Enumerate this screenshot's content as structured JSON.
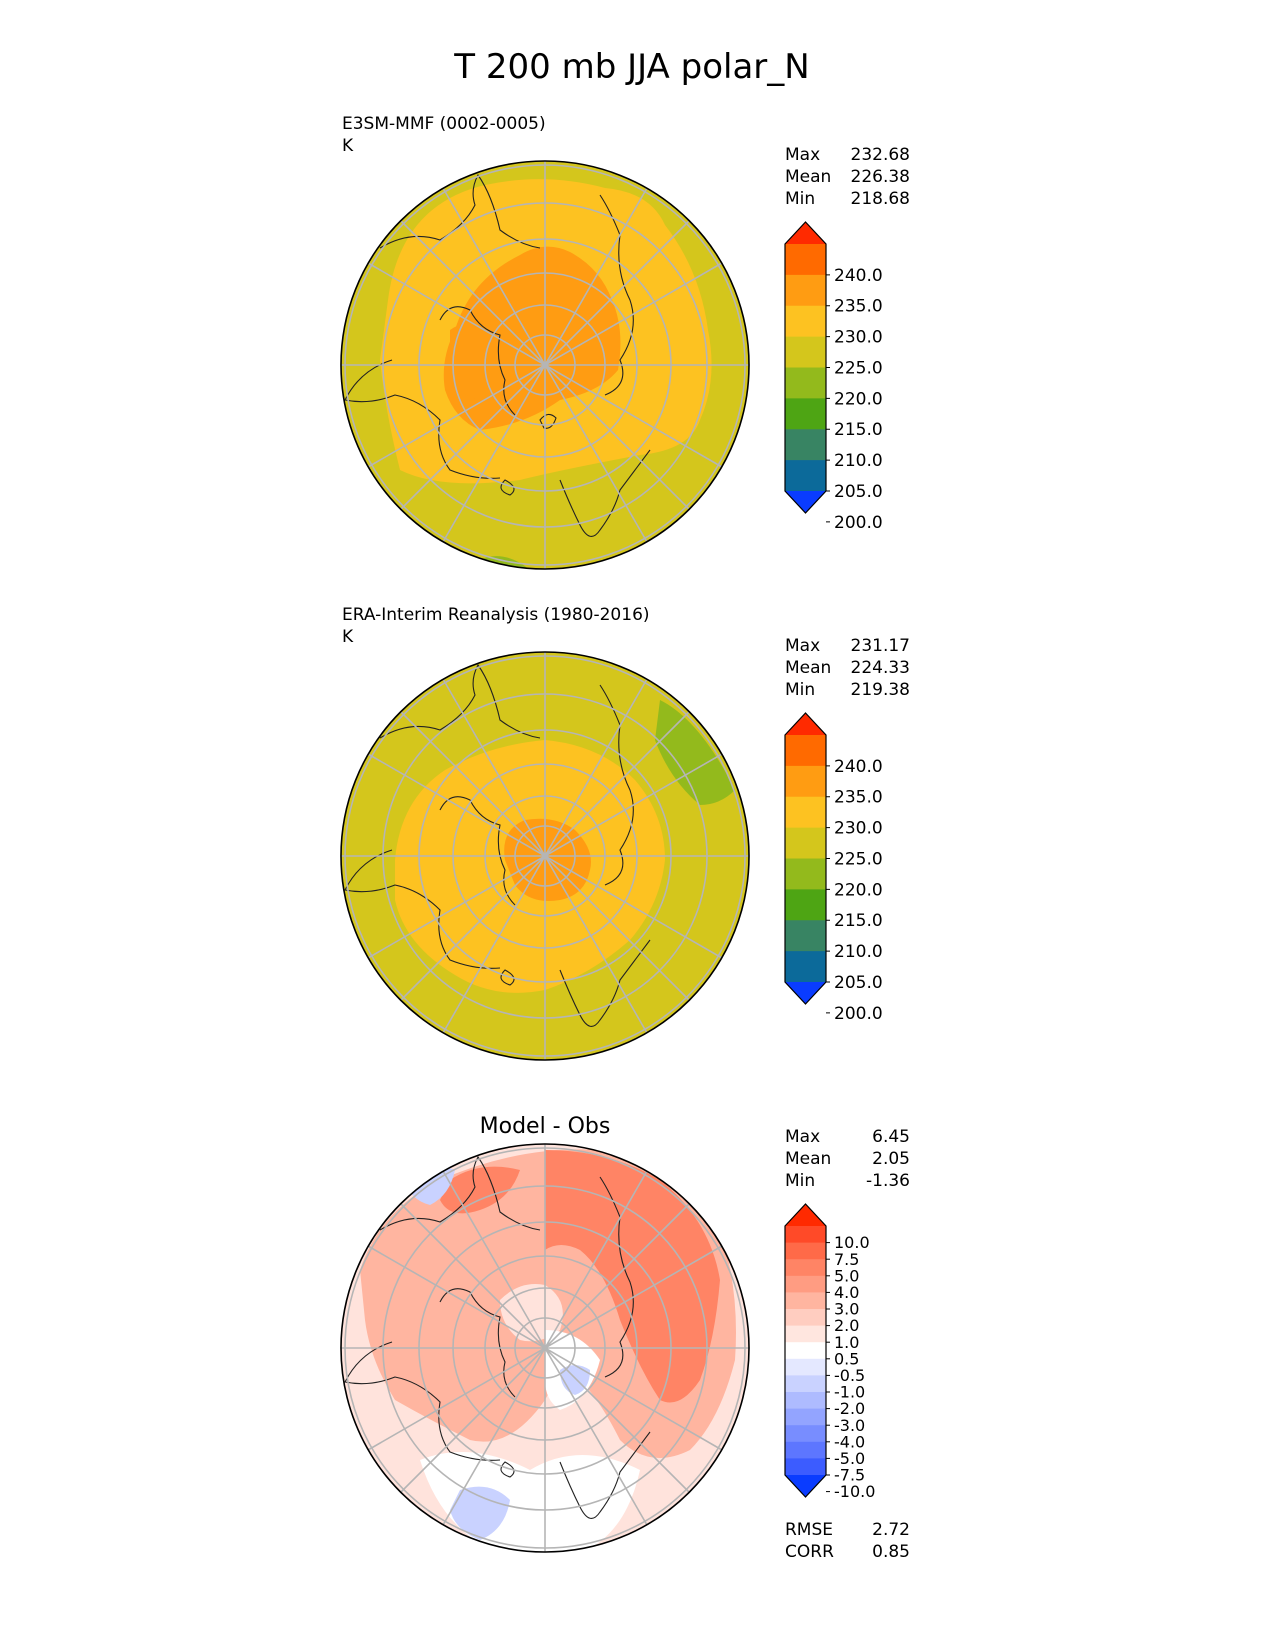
{
  "title": "T 200 mb JJA polar_N",
  "chart_data": [
    {
      "type": "heatmap",
      "projection": "north-polar-stereographic",
      "title": "E3SM-MMF (0002-0005)",
      "units": "K",
      "stats": [
        {
          "label": "Max",
          "value": "232.68"
        },
        {
          "label": "Mean",
          "value": "226.38"
        },
        {
          "label": "Min",
          "value": "218.68"
        }
      ],
      "colorbar": {
        "extend": "both",
        "ticks": [
          "240.0",
          "235.0",
          "230.0",
          "225.0",
          "220.0",
          "215.0",
          "210.0",
          "205.0",
          "200.0"
        ],
        "colors": [
          "#ff2a00",
          "#ff6a00",
          "#ff9c12",
          "#fdc221",
          "#d4c61c",
          "#93ba1c",
          "#4ea514",
          "#388463",
          "#0c6a9a",
          "#0a3cff"
        ]
      },
      "field": {
        "background": "#d4c61c",
        "levels": [
          {
            "value": 225,
            "color": "#fdc221"
          },
          {
            "value": 230,
            "color": "#ff9c12"
          }
        ],
        "edge_patches": [
          {
            "color": "#93ba1c",
            "where": "top-left"
          },
          {
            "color": "#93ba1c",
            "where": "bottom"
          }
        ]
      }
    },
    {
      "type": "heatmap",
      "projection": "north-polar-stereographic",
      "title": "ERA-Interim Reanalysis (1980-2016)",
      "units": "K",
      "stats": [
        {
          "label": "Max",
          "value": "231.17"
        },
        {
          "label": "Mean",
          "value": "224.33"
        },
        {
          "label": "Min",
          "value": "219.38"
        }
      ],
      "colorbar": {
        "extend": "both",
        "ticks": [
          "240.0",
          "235.0",
          "230.0",
          "225.0",
          "220.0",
          "215.0",
          "210.0",
          "205.0",
          "200.0"
        ],
        "colors": [
          "#ff2a00",
          "#ff6a00",
          "#ff9c12",
          "#fdc221",
          "#d4c61c",
          "#93ba1c",
          "#4ea514",
          "#388463",
          "#0c6a9a",
          "#0a3cff"
        ]
      },
      "field": {
        "background": "#d4c61c",
        "levels": [
          {
            "value": 225,
            "color": "#fdc221"
          },
          {
            "value": 230,
            "color": "#ff9c12"
          }
        ],
        "edge_patches": [
          {
            "color": "#93ba1c",
            "where": "right"
          }
        ]
      }
    },
    {
      "type": "heatmap",
      "projection": "north-polar-stereographic",
      "title": "Model - Obs",
      "units": "",
      "stats": [
        {
          "label": "Max",
          "value": "6.45"
        },
        {
          "label": "Mean",
          "value": "2.05"
        },
        {
          "label": "Min",
          "value": "-1.36"
        }
      ],
      "colorbar": {
        "extend": "both",
        "ticks": [
          "10.0",
          "7.5",
          "5.0",
          "4.0",
          "3.0",
          "2.0",
          "1.0",
          "0.5",
          "-0.5",
          "-1.0",
          "-2.0",
          "-3.0",
          "-4.0",
          "-5.0",
          "-7.5",
          "-10.0"
        ],
        "colors": [
          "#ff2a00",
          "#ff4a28",
          "#ff6a48",
          "#ff8465",
          "#ff9c82",
          "#ffb5a0",
          "#ffcdc0",
          "#ffe6df",
          "#ffffff",
          "#e4e8ff",
          "#c9d2ff",
          "#aebbff",
          "#93a4ff",
          "#788dff",
          "#5d76ff",
          "#3c5cff",
          "#0a3cff"
        ]
      },
      "field": {
        "background": "#ffe3dc",
        "levels": [
          {
            "value": 2.0,
            "color": "#ffb5a0"
          },
          {
            "value": 4.0,
            "color": "#ff8465"
          }
        ],
        "edge_patches": [
          {
            "color": "#ffffff",
            "where": "bottom"
          },
          {
            "color": "#c9d2ff",
            "where": "bottom-left"
          },
          {
            "color": "#c9d2ff",
            "where": "top-left"
          },
          {
            "color": "#c9d2ff",
            "where": "center"
          }
        ]
      },
      "extra_stats": [
        {
          "label": "RMSE",
          "value": "2.72"
        },
        {
          "label": "CORR",
          "value": "0.85"
        }
      ]
    }
  ]
}
